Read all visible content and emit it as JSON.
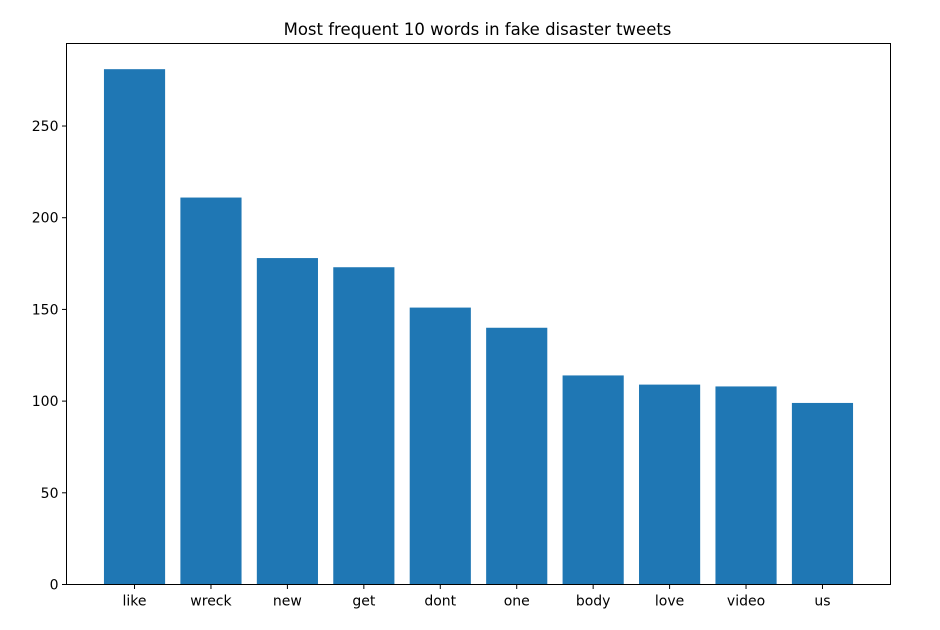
{
  "chart_data": {
    "type": "bar",
    "title": "Most frequent 10 words in fake disaster tweets",
    "xlabel": "",
    "ylabel": "",
    "categories": [
      "like",
      "wreck",
      "new",
      "get",
      "dont",
      "one",
      "body",
      "love",
      "video",
      "us"
    ],
    "values": [
      281,
      211,
      178,
      173,
      151,
      140,
      114,
      109,
      108,
      99
    ],
    "ylim": [
      0,
      295
    ],
    "yticks": [
      0,
      50,
      100,
      150,
      200,
      250
    ],
    "bar_color": "#1f77b4",
    "grid": false,
    "legend": "none"
  }
}
